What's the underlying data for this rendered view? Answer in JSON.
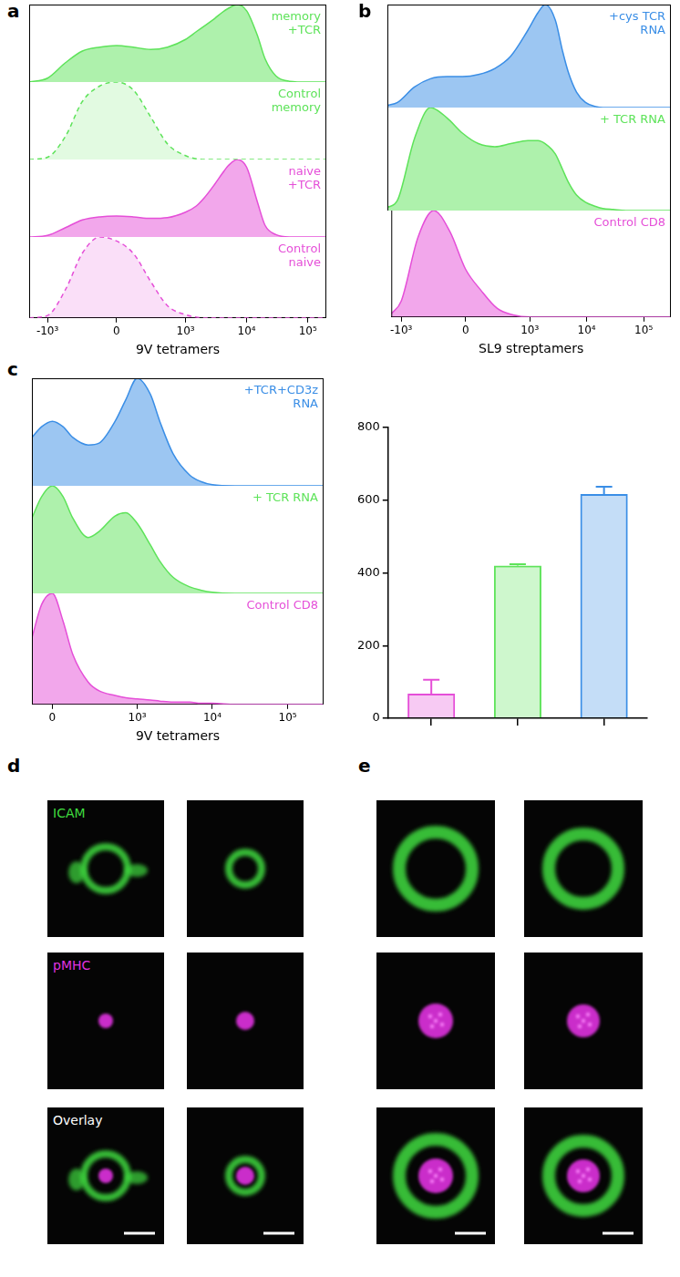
{
  "chart_data": [
    {
      "panel": "a",
      "type": "area",
      "x_label": "9V tetramers",
      "xlim": [
        -2000,
        200000
      ],
      "xticks": [
        {
          "value": -1000,
          "label": "-10³"
        },
        0,
        {
          "value": 1000,
          "label": "10³"
        },
        {
          "value": 10000,
          "label": "10⁴"
        },
        {
          "value": 100000,
          "label": "10⁵"
        }
      ],
      "ylim": [
        0,
        100
      ],
      "tick_labels": "x",
      "grid": false,
      "x": [
        -2000,
        -1000,
        -500,
        -250,
        -100,
        0,
        100,
        250,
        500,
        1000,
        1500,
        2000,
        3000,
        4000,
        5000,
        7000,
        10000,
        15000,
        20000,
        30000,
        50000,
        100000,
        200000
      ],
      "series": [
        {
          "name": "memory\n+TCR",
          "color": "#5ee35a",
          "line_style": "solid",
          "values": [
            0,
            5,
            25,
            40,
            45,
            47,
            45,
            42,
            45,
            55,
            65,
            72,
            82,
            90,
            95,
            100,
            92,
            60,
            30,
            8,
            1,
            0,
            0
          ]
        },
        {
          "name": "Control\nmemory",
          "color": "#5ee35a",
          "line_style": "dashed",
          "values": [
            0,
            3,
            30,
            75,
            95,
            100,
            90,
            55,
            20,
            5,
            1,
            0,
            0,
            0,
            0,
            0,
            0,
            0,
            0,
            0,
            0,
            0,
            0
          ]
        },
        {
          "name": "naive\n+TCR",
          "color": "#e54fd8",
          "line_style": "solid",
          "values": [
            0,
            2,
            12,
            22,
            26,
            27,
            26,
            24,
            25,
            32,
            40,
            50,
            68,
            82,
            92,
            100,
            90,
            45,
            15,
            3,
            0,
            0,
            0
          ]
        },
        {
          "name": "Control\nnaive",
          "color": "#e54fd8",
          "line_style": "dashed",
          "values": [
            0,
            3,
            35,
            80,
            100,
            95,
            80,
            45,
            15,
            4,
            1,
            0,
            0,
            0,
            0,
            0,
            0,
            0,
            0,
            0,
            0,
            0,
            0
          ]
        }
      ]
    },
    {
      "panel": "b",
      "type": "area",
      "x_label": "SL9 streptamers",
      "xlim": [
        -1500,
        300000
      ],
      "xticks": [
        {
          "value": -1000,
          "label": "-10³"
        },
        0,
        {
          "value": 1000,
          "label": "10³"
        },
        {
          "value": 10000,
          "label": "10⁴"
        },
        {
          "value": 100000,
          "label": "10⁵"
        }
      ],
      "ylim": [
        0,
        100
      ],
      "tick_labels": "x",
      "grid": false,
      "x": [
        -1500,
        -1000,
        -500,
        -250,
        -100,
        0,
        100,
        250,
        500,
        1000,
        1500,
        2000,
        3000,
        4000,
        5000,
        7000,
        10000,
        15000,
        20000,
        30000,
        50000,
        100000,
        300000
      ],
      "series": [
        {
          "name": "+cys TCR\nRNA",
          "color": "#3a8ee6",
          "line_style": "solid",
          "values": [
            2,
            5,
            20,
            28,
            30,
            30,
            32,
            38,
            50,
            75,
            92,
            100,
            85,
            55,
            35,
            15,
            5,
            1,
            0,
            0,
            0,
            0,
            0
          ]
        },
        {
          "name": "+ TCR RNA",
          "color": "#5ee35a",
          "line_style": "solid",
          "values": [
            3,
            10,
            70,
            100,
            90,
            75,
            65,
            62,
            65,
            68,
            68,
            65,
            55,
            40,
            28,
            15,
            8,
            4,
            2,
            1,
            0,
            0,
            0
          ]
        },
        {
          "name": "Control CD8",
          "color": "#e54fd8",
          "line_style": "solid",
          "values": [
            3,
            15,
            75,
            100,
            80,
            45,
            25,
            8,
            2,
            0,
            0,
            0,
            0,
            0,
            0,
            0,
            0,
            0,
            0,
            0,
            0,
            0,
            0
          ]
        }
      ]
    },
    {
      "panel": "c",
      "type": "area",
      "x_label": "9V tetramers",
      "xlim": [
        -100,
        300000
      ],
      "xticks": [
        0,
        {
          "value": 1000,
          "label": "10³"
        },
        {
          "value": 10000,
          "label": "10⁴"
        },
        {
          "value": 100000,
          "label": "10⁵"
        }
      ],
      "ylim": [
        0,
        100
      ],
      "tick_labels": "x",
      "grid": false,
      "x": [
        -100,
        -50,
        0,
        50,
        100,
        200,
        300,
        500,
        700,
        1000,
        1500,
        2000,
        3000,
        5000,
        7000,
        10000,
        20000,
        50000,
        100000,
        300000
      ],
      "series": [
        {
          "name": "+TCR+CD3z\nRNA",
          "color": "#3a8ee6",
          "line_style": "solid",
          "values": [
            45,
            55,
            60,
            55,
            45,
            38,
            40,
            60,
            80,
            100,
            85,
            60,
            30,
            10,
            4,
            1,
            0,
            0,
            0,
            0
          ]
        },
        {
          "name": "+ TCR RNA",
          "color": "#5ee35a",
          "line_style": "solid",
          "values": [
            70,
            90,
            100,
            90,
            70,
            52,
            58,
            72,
            75,
            65,
            45,
            30,
            15,
            6,
            3,
            1,
            0,
            0,
            0,
            0
          ]
        },
        {
          "name": "Control CD8",
          "color": "#e54fd8",
          "line_style": "solid",
          "values": [
            60,
            90,
            100,
            75,
            45,
            20,
            12,
            8,
            6,
            5,
            4,
            3,
            2,
            2,
            1,
            1,
            0,
            0,
            0,
            0
          ]
        }
      ]
    },
    {
      "type": "bar",
      "categories": [
        null,
        null,
        null
      ],
      "values": [
        68,
        420,
        617
      ],
      "errors": [
        38,
        4,
        20
      ],
      "colors": [
        "#e54fd8",
        "#5ee35a",
        "#3a8ee6"
      ],
      "ylim": [
        0,
        800
      ],
      "yticks": [
        0,
        200,
        400,
        600,
        800
      ],
      "tick_labels": "y",
      "grid": false
    }
  ],
  "images": [
    {
      "panel": "d",
      "channels": [
        "ICAM",
        "pMHC",
        "Overlay"
      ]
    },
    {
      "panel": "e"
    }
  ]
}
